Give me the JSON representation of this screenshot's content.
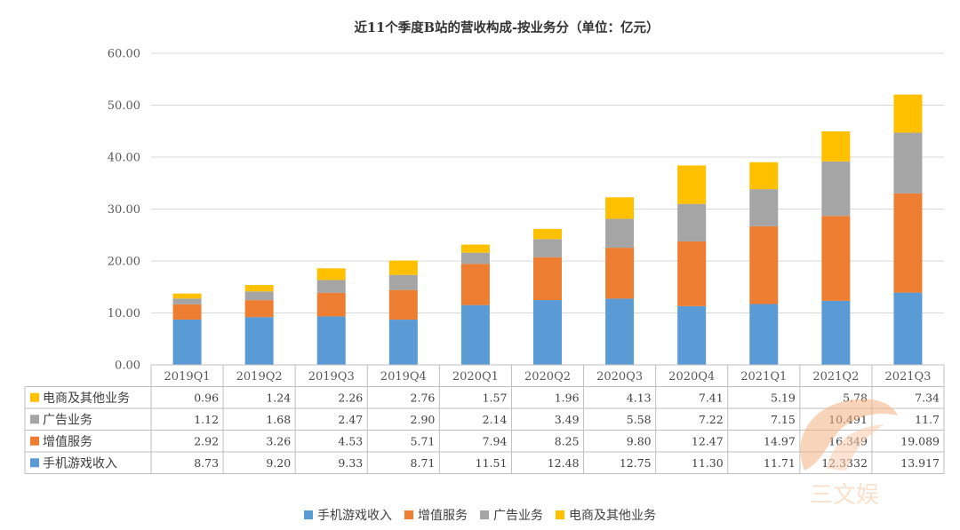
{
  "chart_data": {
    "type": "bar",
    "stacked": true,
    "title": "近11个季度B站的营收构成-按业务分（单位：亿元）",
    "categories": [
      "2019Q1",
      "2019Q2",
      "2019Q3",
      "2019Q4",
      "2020Q1",
      "2020Q2",
      "2020Q3",
      "2020Q4",
      "2021Q1",
      "2021Q2",
      "2021Q3"
    ],
    "series": [
      {
        "name": "手机游戏收入",
        "color": "#5B9BD5",
        "values": [
          8.73,
          9.2,
          9.33,
          8.71,
          11.51,
          12.48,
          12.75,
          11.3,
          11.71,
          12.3332,
          13.917
        ],
        "labels": [
          "8.73",
          "9.20",
          "9.33",
          "8.71",
          "11.51",
          "12.48",
          "12.75",
          "11.30",
          "11.71",
          "12.3332",
          "13.917"
        ]
      },
      {
        "name": "增值服务",
        "color": "#ED7D31",
        "values": [
          2.92,
          3.26,
          4.53,
          5.71,
          7.94,
          8.25,
          9.8,
          12.47,
          14.97,
          16.349,
          19.089
        ],
        "labels": [
          "2.92",
          "3.26",
          "4.53",
          "5.71",
          "7.94",
          "8.25",
          "9.80",
          "12.47",
          "14.97",
          "16.349",
          "19.089"
        ]
      },
      {
        "name": "广告业务",
        "color": "#A5A5A5",
        "values": [
          1.12,
          1.68,
          2.47,
          2.9,
          2.14,
          3.49,
          5.58,
          7.22,
          7.15,
          10.491,
          11.7
        ],
        "labels": [
          "1.12",
          "1.68",
          "2.47",
          "2.90",
          "2.14",
          "3.49",
          "5.58",
          "7.22",
          "7.15",
          "10.491",
          "11.7"
        ]
      },
      {
        "name": "电商及其他业务",
        "color": "#FFC000",
        "values": [
          0.96,
          1.24,
          2.26,
          2.76,
          1.57,
          1.96,
          4.13,
          7.41,
          5.19,
          5.78,
          7.34
        ],
        "labels": [
          "0.96",
          "1.24",
          "2.26",
          "2.76",
          "1.57",
          "1.96",
          "4.13",
          "7.41",
          "5.19",
          "5.78",
          "7.34"
        ]
      }
    ],
    "ylim": [
      0,
      60
    ],
    "yticks": [
      "0.00",
      "10.00",
      "20.00",
      "30.00",
      "40.00",
      "50.00",
      "60.00"
    ],
    "grid": true,
    "data_table": true,
    "table_row_order": [
      "电商及其他业务",
      "广告业务",
      "增值服务",
      "手机游戏收入"
    ],
    "legend": {
      "position": "bottom",
      "items": [
        "手机游戏收入",
        "增值服务",
        "广告业务",
        "电商及其他业务"
      ]
    }
  },
  "watermark": {
    "text": "三文娱"
  }
}
